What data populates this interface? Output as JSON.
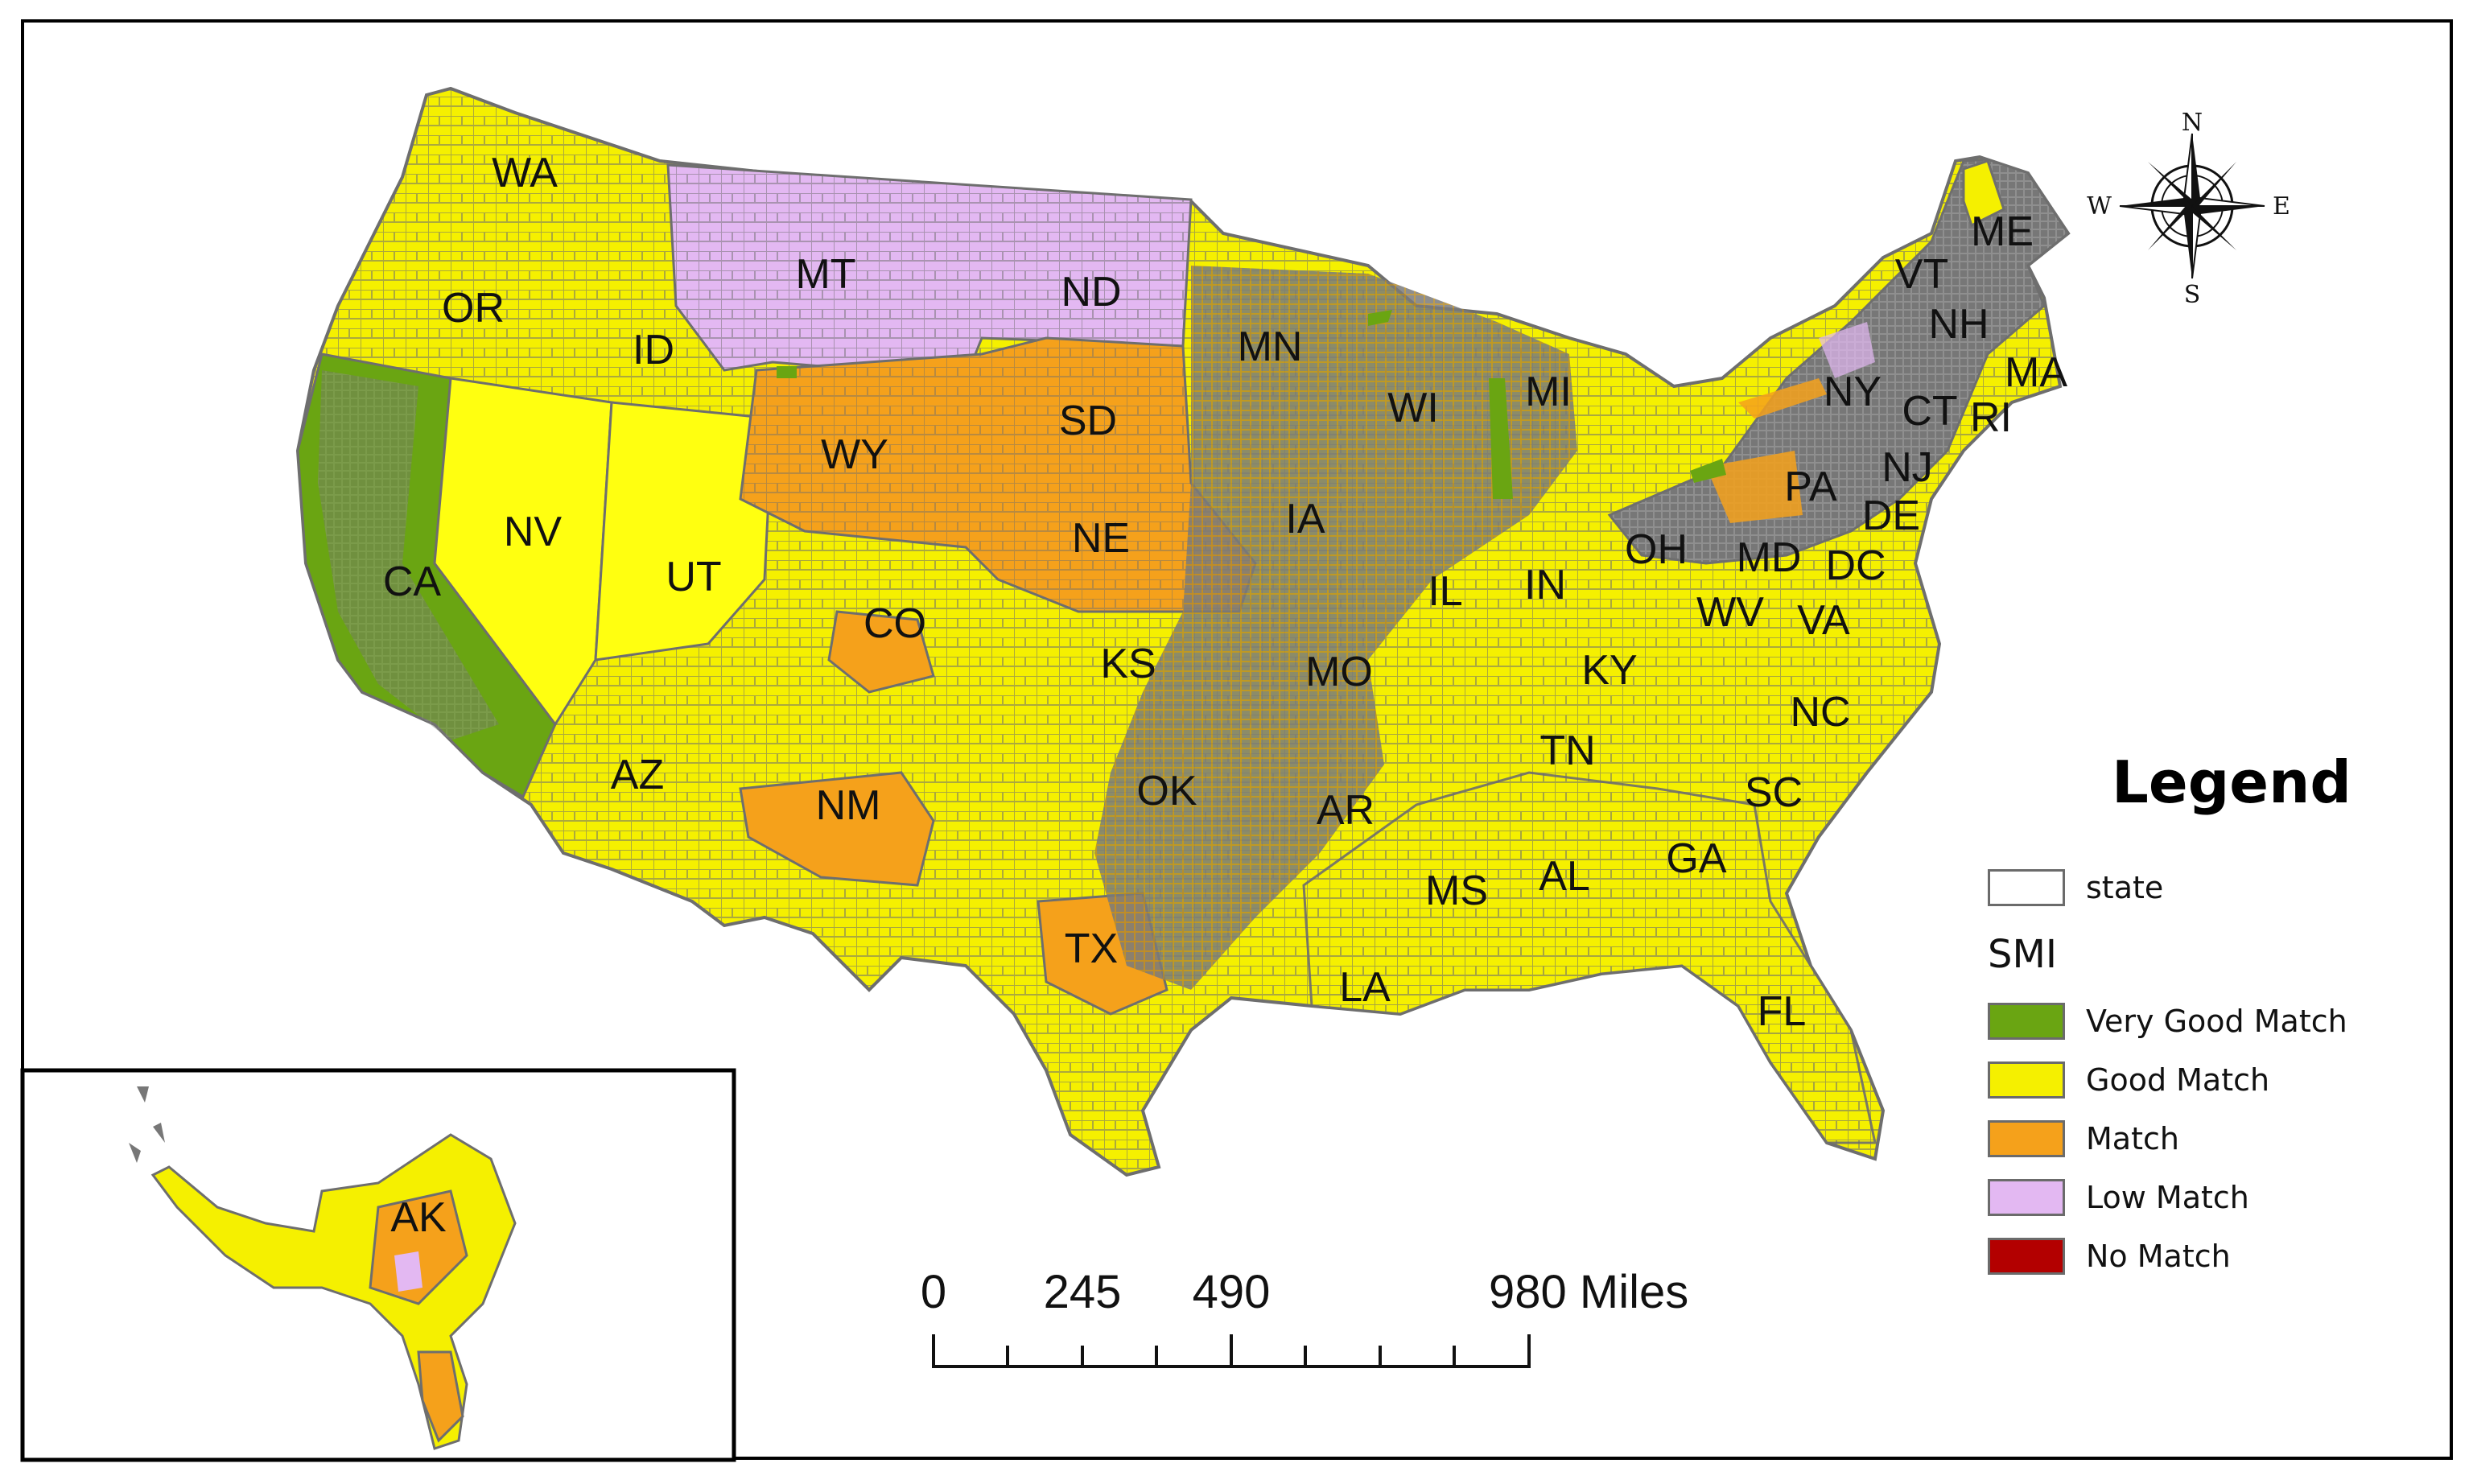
{
  "map": {
    "colors": {
      "very_good": "#6aa512",
      "good": "#f5f000",
      "match": "#f5a11b",
      "low": "#e3b8f2",
      "no_match": "#b30000",
      "border": "#6e6e6e"
    },
    "state_labels": [
      "WA",
      "OR",
      "ID",
      "MT",
      "ND",
      "MN",
      "WI",
      "MI",
      "SD",
      "WY",
      "NV",
      "CA",
      "UT",
      "NE",
      "IA",
      "IL",
      "IN",
      "OH",
      "CO",
      "KS",
      "MO",
      "KY",
      "WV",
      "VA",
      "NC",
      "TN",
      "AZ",
      "NM",
      "OK",
      "AR",
      "MS",
      "AL",
      "GA",
      "SC",
      "TX",
      "LA",
      "FL",
      "ME",
      "VT",
      "NH",
      "MA",
      "NY",
      "CT",
      "RI",
      "NJ",
      "PA",
      "DE",
      "MD",
      "DC",
      "AK"
    ]
  },
  "compass": {
    "n": "N",
    "s": "S",
    "e": "E",
    "w": "W"
  },
  "legend": {
    "title": "Legend",
    "state_label": "state",
    "smi_heading": "SMI",
    "items": [
      {
        "label": "Very Good Match",
        "color": "#6aa512"
      },
      {
        "label": "Good Match",
        "color": "#f5f000"
      },
      {
        "label": "Match",
        "color": "#f5a11b"
      },
      {
        "label": "Low Match",
        "color": "#e3b8f2"
      },
      {
        "label": "No Match",
        "color": "#b30000"
      }
    ]
  },
  "scale_bar": {
    "labels": [
      "0",
      "245",
      "490",
      "980 Miles"
    ]
  }
}
